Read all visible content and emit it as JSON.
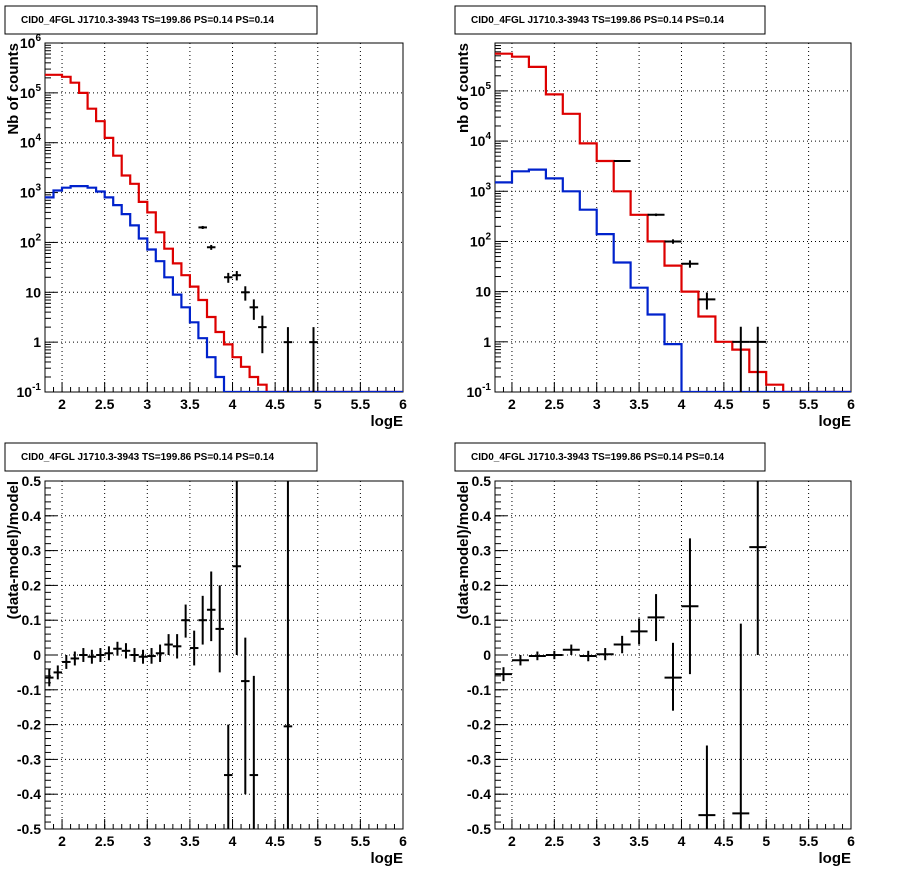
{
  "chart_data": [
    {
      "type": "step-histogram",
      "title": "CID0_4FGL J1710.3-3943 TS=199.86 PS=0.14 PS=0.14",
      "xlabel": "logE",
      "ylabel": "Nb of counts",
      "xlim": [
        1.8,
        6
      ],
      "ylim": [
        0.1,
        1000000
      ],
      "yscale": "log",
      "grid": true,
      "x_ticks": [
        "2",
        "2.5",
        "3",
        "3.5",
        "4",
        "4.5",
        "5",
        "5.5",
        "6"
      ],
      "y_ticks": [
        {
          "base": "10",
          "exp": "-1",
          "v": 0.1
        },
        {
          "base": "1",
          "exp": "",
          "v": 1
        },
        {
          "base": "10",
          "exp": "",
          "v": 10
        },
        {
          "base": "10",
          "exp": "2",
          "v": 100
        },
        {
          "base": "10",
          "exp": "3",
          "v": 1000
        },
        {
          "base": "10",
          "exp": "4",
          "v": 10000
        },
        {
          "base": "10",
          "exp": "5",
          "v": 100000
        },
        {
          "base": "10",
          "exp": "6",
          "v": 1000000
        }
      ],
      "bin_width": 0.1,
      "bin_edges_start": 1.8,
      "series": [
        {
          "color": "#dd0000",
          "values": [
            230000,
            230000,
            210000,
            160000,
            100000,
            48000,
            27000,
            12500,
            5500,
            2200,
            1500,
            650,
            400,
            160,
            75,
            38,
            22,
            13,
            7,
            3.2,
            1.6,
            0.9,
            0.5,
            0.32,
            0.2,
            0.14,
            0.1,
            0.1,
            0.1,
            0.1,
            0.1,
            0.1,
            0.1,
            0.1,
            0.1,
            0.1,
            0.1,
            0.1,
            0.1,
            0.1,
            0.1,
            0.1
          ]
        },
        {
          "color": "#0022cc",
          "values": [
            800,
            1100,
            1250,
            1350,
            1350,
            1250,
            1050,
            800,
            560,
            370,
            220,
            120,
            72,
            42,
            20,
            9,
            5,
            2.5,
            1.2,
            0.5,
            0.2,
            0.1,
            0.1,
            0.1,
            0.1,
            0.1,
            0.1,
            0.1,
            0.1,
            0.1,
            0.1,
            0.1,
            0.1,
            0.1,
            0.1,
            0.1,
            0.1,
            0.1,
            0.1,
            0.1,
            0.1,
            0.1
          ]
        }
      ],
      "points": [
        {
          "x": 3.65,
          "y": 200,
          "xerr": 0.05,
          "lo": 186,
          "hi": 214
        },
        {
          "x": 3.75,
          "y": 80,
          "xerr": 0.05,
          "lo": 71,
          "hi": 89
        },
        {
          "x": 3.95,
          "y": 20,
          "xerr": 0.05,
          "lo": 15.5,
          "hi": 24.5
        },
        {
          "x": 4.05,
          "y": 22,
          "xerr": 0.05,
          "lo": 17.3,
          "hi": 26.7
        },
        {
          "x": 4.15,
          "y": 10,
          "xerr": 0.05,
          "lo": 6.8,
          "hi": 13.2
        },
        {
          "x": 4.25,
          "y": 5,
          "xerr": 0.05,
          "lo": 2.8,
          "hi": 7.2
        },
        {
          "x": 4.35,
          "y": 2,
          "xerr": 0.05,
          "lo": 0.6,
          "hi": 3.4
        },
        {
          "x": 4.65,
          "y": 1,
          "xerr": 0.05,
          "lo": 0.1,
          "hi": 2
        },
        {
          "x": 4.95,
          "y": 1,
          "xerr": 0.05,
          "lo": 0.1,
          "hi": 2
        }
      ]
    },
    {
      "type": "step-histogram",
      "title": "CID0_4FGL J1710.3-3943 TS=199.86 PS=0.14 PS=0.14",
      "xlabel": "logE",
      "ylabel": "nb of counts",
      "xlim": [
        1.8,
        6
      ],
      "ylim": [
        0.1,
        900000
      ],
      "yscale": "log",
      "grid": true,
      "x_ticks": [
        "2",
        "2.5",
        "3",
        "3.5",
        "4",
        "4.5",
        "5",
        "5.5",
        "6"
      ],
      "y_ticks": [
        {
          "base": "10",
          "exp": "-1",
          "v": 0.1
        },
        {
          "base": "1",
          "exp": "",
          "v": 1
        },
        {
          "base": "10",
          "exp": "",
          "v": 10
        },
        {
          "base": "10",
          "exp": "2",
          "v": 100
        },
        {
          "base": "10",
          "exp": "3",
          "v": 1000
        },
        {
          "base": "10",
          "exp": "4",
          "v": 10000
        },
        {
          "base": "10",
          "exp": "5",
          "v": 100000
        }
      ],
      "bin_width": 0.2,
      "bin_edges_start": 1.8,
      "series": [
        {
          "color": "#dd0000",
          "values": [
            550000,
            480000,
            300000,
            85000,
            35000,
            9000,
            4000,
            1000,
            340,
            100,
            33,
            10,
            3.2,
            1,
            0.7,
            0.25,
            0.14,
            0.1,
            0.1,
            0.1,
            0.1
          ]
        },
        {
          "color": "#0022cc",
          "values": [
            1500,
            2500,
            2700,
            1800,
            1000,
            430,
            140,
            38,
            12,
            3.5,
            0.9,
            0.1,
            0.1,
            0.1,
            0.1,
            0.1,
            0.1,
            0.1,
            0.1,
            0.1,
            0.1
          ]
        }
      ],
      "points": [
        {
          "x": 3.3,
          "y": 4000,
          "xerr": 0.1,
          "lo": 3880,
          "hi": 4120
        },
        {
          "x": 3.7,
          "y": 340,
          "xerr": 0.1,
          "lo": 320,
          "hi": 360
        },
        {
          "x": 3.9,
          "y": 100,
          "xerr": 0.1,
          "lo": 90,
          "hi": 110
        },
        {
          "x": 4.1,
          "y": 36,
          "xerr": 0.1,
          "lo": 30,
          "hi": 42
        },
        {
          "x": 4.3,
          "y": 7,
          "xerr": 0.1,
          "lo": 4.4,
          "hi": 9.6
        },
        {
          "x": 4.7,
          "y": 1,
          "xerr": 0.1,
          "lo": 0.1,
          "hi": 2
        },
        {
          "x": 4.9,
          "y": 1,
          "xerr": 0.1,
          "lo": 0.1,
          "hi": 2
        }
      ]
    },
    {
      "type": "scatter-errorbars",
      "title": "CID0_4FGL J1710.3-3943 TS=199.86 PS=0.14 PS=0.14",
      "xlabel": "logE",
      "ylabel": "(data-model)/model",
      "xlim": [
        1.8,
        6
      ],
      "ylim": [
        -0.5,
        0.5
      ],
      "grid": true,
      "x_ticks": [
        "2",
        "2.5",
        "3",
        "3.5",
        "4",
        "4.5",
        "5",
        "5.5",
        "6"
      ],
      "y_ticks": [
        "-0.5",
        "-0.4",
        "-0.3",
        "-0.2",
        "-0.1",
        "0",
        "0.1",
        "0.2",
        "0.3",
        "0.4",
        "0.5"
      ],
      "points": [
        {
          "x": 1.85,
          "y": -0.065,
          "xerr": 0.05,
          "lo": -0.09,
          "hi": -0.04
        },
        {
          "x": 1.95,
          "y": -0.05,
          "xerr": 0.05,
          "lo": -0.07,
          "hi": -0.03
        },
        {
          "x": 2.05,
          "y": -0.02,
          "xerr": 0.05,
          "lo": -0.04,
          "hi": 0.0
        },
        {
          "x": 2.15,
          "y": -0.01,
          "xerr": 0.05,
          "lo": -0.03,
          "hi": 0.01
        },
        {
          "x": 2.25,
          "y": 0.0,
          "xerr": 0.05,
          "lo": -0.02,
          "hi": 0.02
        },
        {
          "x": 2.35,
          "y": -0.005,
          "xerr": 0.05,
          "lo": -0.025,
          "hi": 0.015
        },
        {
          "x": 2.45,
          "y": 0.0,
          "xerr": 0.05,
          "lo": -0.02,
          "hi": 0.02
        },
        {
          "x": 2.55,
          "y": 0.005,
          "xerr": 0.05,
          "lo": -0.015,
          "hi": 0.025
        },
        {
          "x": 2.65,
          "y": 0.018,
          "xerr": 0.05,
          "lo": -0.002,
          "hi": 0.038
        },
        {
          "x": 2.75,
          "y": 0.012,
          "xerr": 0.05,
          "lo": -0.01,
          "hi": 0.034
        },
        {
          "x": 2.85,
          "y": 0.0,
          "xerr": 0.05,
          "lo": -0.02,
          "hi": 0.02
        },
        {
          "x": 2.95,
          "y": -0.005,
          "xerr": 0.05,
          "lo": -0.025,
          "hi": 0.015
        },
        {
          "x": 3.05,
          "y": -0.003,
          "xerr": 0.05,
          "lo": -0.025,
          "hi": 0.02
        },
        {
          "x": 3.15,
          "y": 0.005,
          "xerr": 0.05,
          "lo": -0.02,
          "hi": 0.03
        },
        {
          "x": 3.25,
          "y": 0.03,
          "xerr": 0.05,
          "lo": 0.0,
          "hi": 0.06
        },
        {
          "x": 3.35,
          "y": 0.025,
          "xerr": 0.05,
          "lo": -0.01,
          "hi": 0.06
        },
        {
          "x": 3.45,
          "y": 0.1,
          "xerr": 0.05,
          "lo": 0.05,
          "hi": 0.145
        },
        {
          "x": 3.55,
          "y": 0.02,
          "xerr": 0.05,
          "lo": -0.03,
          "hi": 0.07
        },
        {
          "x": 3.65,
          "y": 0.1,
          "xerr": 0.05,
          "lo": 0.03,
          "hi": 0.17
        },
        {
          "x": 3.75,
          "y": 0.13,
          "xerr": 0.05,
          "lo": 0.04,
          "hi": 0.24
        },
        {
          "x": 3.85,
          "y": 0.075,
          "xerr": 0.05,
          "lo": -0.05,
          "hi": 0.2
        },
        {
          "x": 3.95,
          "y": -0.345,
          "xerr": 0.05,
          "lo": -0.5,
          "hi": -0.2
        },
        {
          "x": 4.05,
          "y": 0.255,
          "xerr": 0.05,
          "lo": 0.0,
          "hi": 0.5
        },
        {
          "x": 4.15,
          "y": -0.075,
          "xerr": 0.05,
          "lo": -0.4,
          "hi": 0.05
        },
        {
          "x": 4.25,
          "y": -0.345,
          "xerr": 0.05,
          "lo": -0.5,
          "hi": -0.06
        },
        {
          "x": 4.65,
          "y": -0.205,
          "xerr": 0.05,
          "lo": -0.5,
          "hi": 0.5
        }
      ]
    },
    {
      "type": "scatter-errorbars",
      "title": "CID0_4FGL J1710.3-3943 TS=199.86 PS=0.14 PS=0.14",
      "xlabel": "logE",
      "ylabel": "(data-model)/model",
      "xlim": [
        1.8,
        6
      ],
      "ylim": [
        -0.5,
        0.5
      ],
      "grid": true,
      "x_ticks": [
        "2",
        "2.5",
        "3",
        "3.5",
        "4",
        "4.5",
        "5",
        "5.5",
        "6"
      ],
      "y_ticks": [
        "-0.5",
        "-0.4",
        "-0.3",
        "-0.2",
        "-0.1",
        "0",
        "0.1",
        "0.2",
        "0.3",
        "0.4",
        "0.5"
      ],
      "points": [
        {
          "x": 1.9,
          "y": -0.055,
          "xerr": 0.1,
          "lo": -0.075,
          "hi": -0.035
        },
        {
          "x": 2.1,
          "y": -0.015,
          "xerr": 0.1,
          "lo": -0.03,
          "hi": 0.0
        },
        {
          "x": 2.3,
          "y": -0.003,
          "xerr": 0.1,
          "lo": -0.015,
          "hi": 0.01
        },
        {
          "x": 2.5,
          "y": 0.0,
          "xerr": 0.1,
          "lo": -0.012,
          "hi": 0.012
        },
        {
          "x": 2.7,
          "y": 0.015,
          "xerr": 0.1,
          "lo": 0.0,
          "hi": 0.03
        },
        {
          "x": 2.9,
          "y": -0.003,
          "xerr": 0.1,
          "lo": -0.018,
          "hi": 0.012
        },
        {
          "x": 3.1,
          "y": 0.002,
          "xerr": 0.1,
          "lo": -0.015,
          "hi": 0.02
        },
        {
          "x": 3.3,
          "y": 0.03,
          "xerr": 0.1,
          "lo": 0.005,
          "hi": 0.055
        },
        {
          "x": 3.5,
          "y": 0.068,
          "xerr": 0.1,
          "lo": 0.03,
          "hi": 0.105
        },
        {
          "x": 3.7,
          "y": 0.108,
          "xerr": 0.1,
          "lo": 0.04,
          "hi": 0.175
        },
        {
          "x": 3.9,
          "y": -0.065,
          "xerr": 0.1,
          "lo": -0.16,
          "hi": 0.035
        },
        {
          "x": 4.1,
          "y": 0.14,
          "xerr": 0.1,
          "lo": -0.055,
          "hi": 0.335
        },
        {
          "x": 4.3,
          "y": -0.46,
          "xerr": 0.1,
          "lo": -0.5,
          "hi": -0.26
        },
        {
          "x": 4.7,
          "y": -0.455,
          "xerr": 0.1,
          "lo": -0.5,
          "hi": 0.09
        },
        {
          "x": 4.9,
          "y": 0.31,
          "xerr": 0.1,
          "lo": 0.0,
          "hi": 0.5
        }
      ]
    }
  ]
}
